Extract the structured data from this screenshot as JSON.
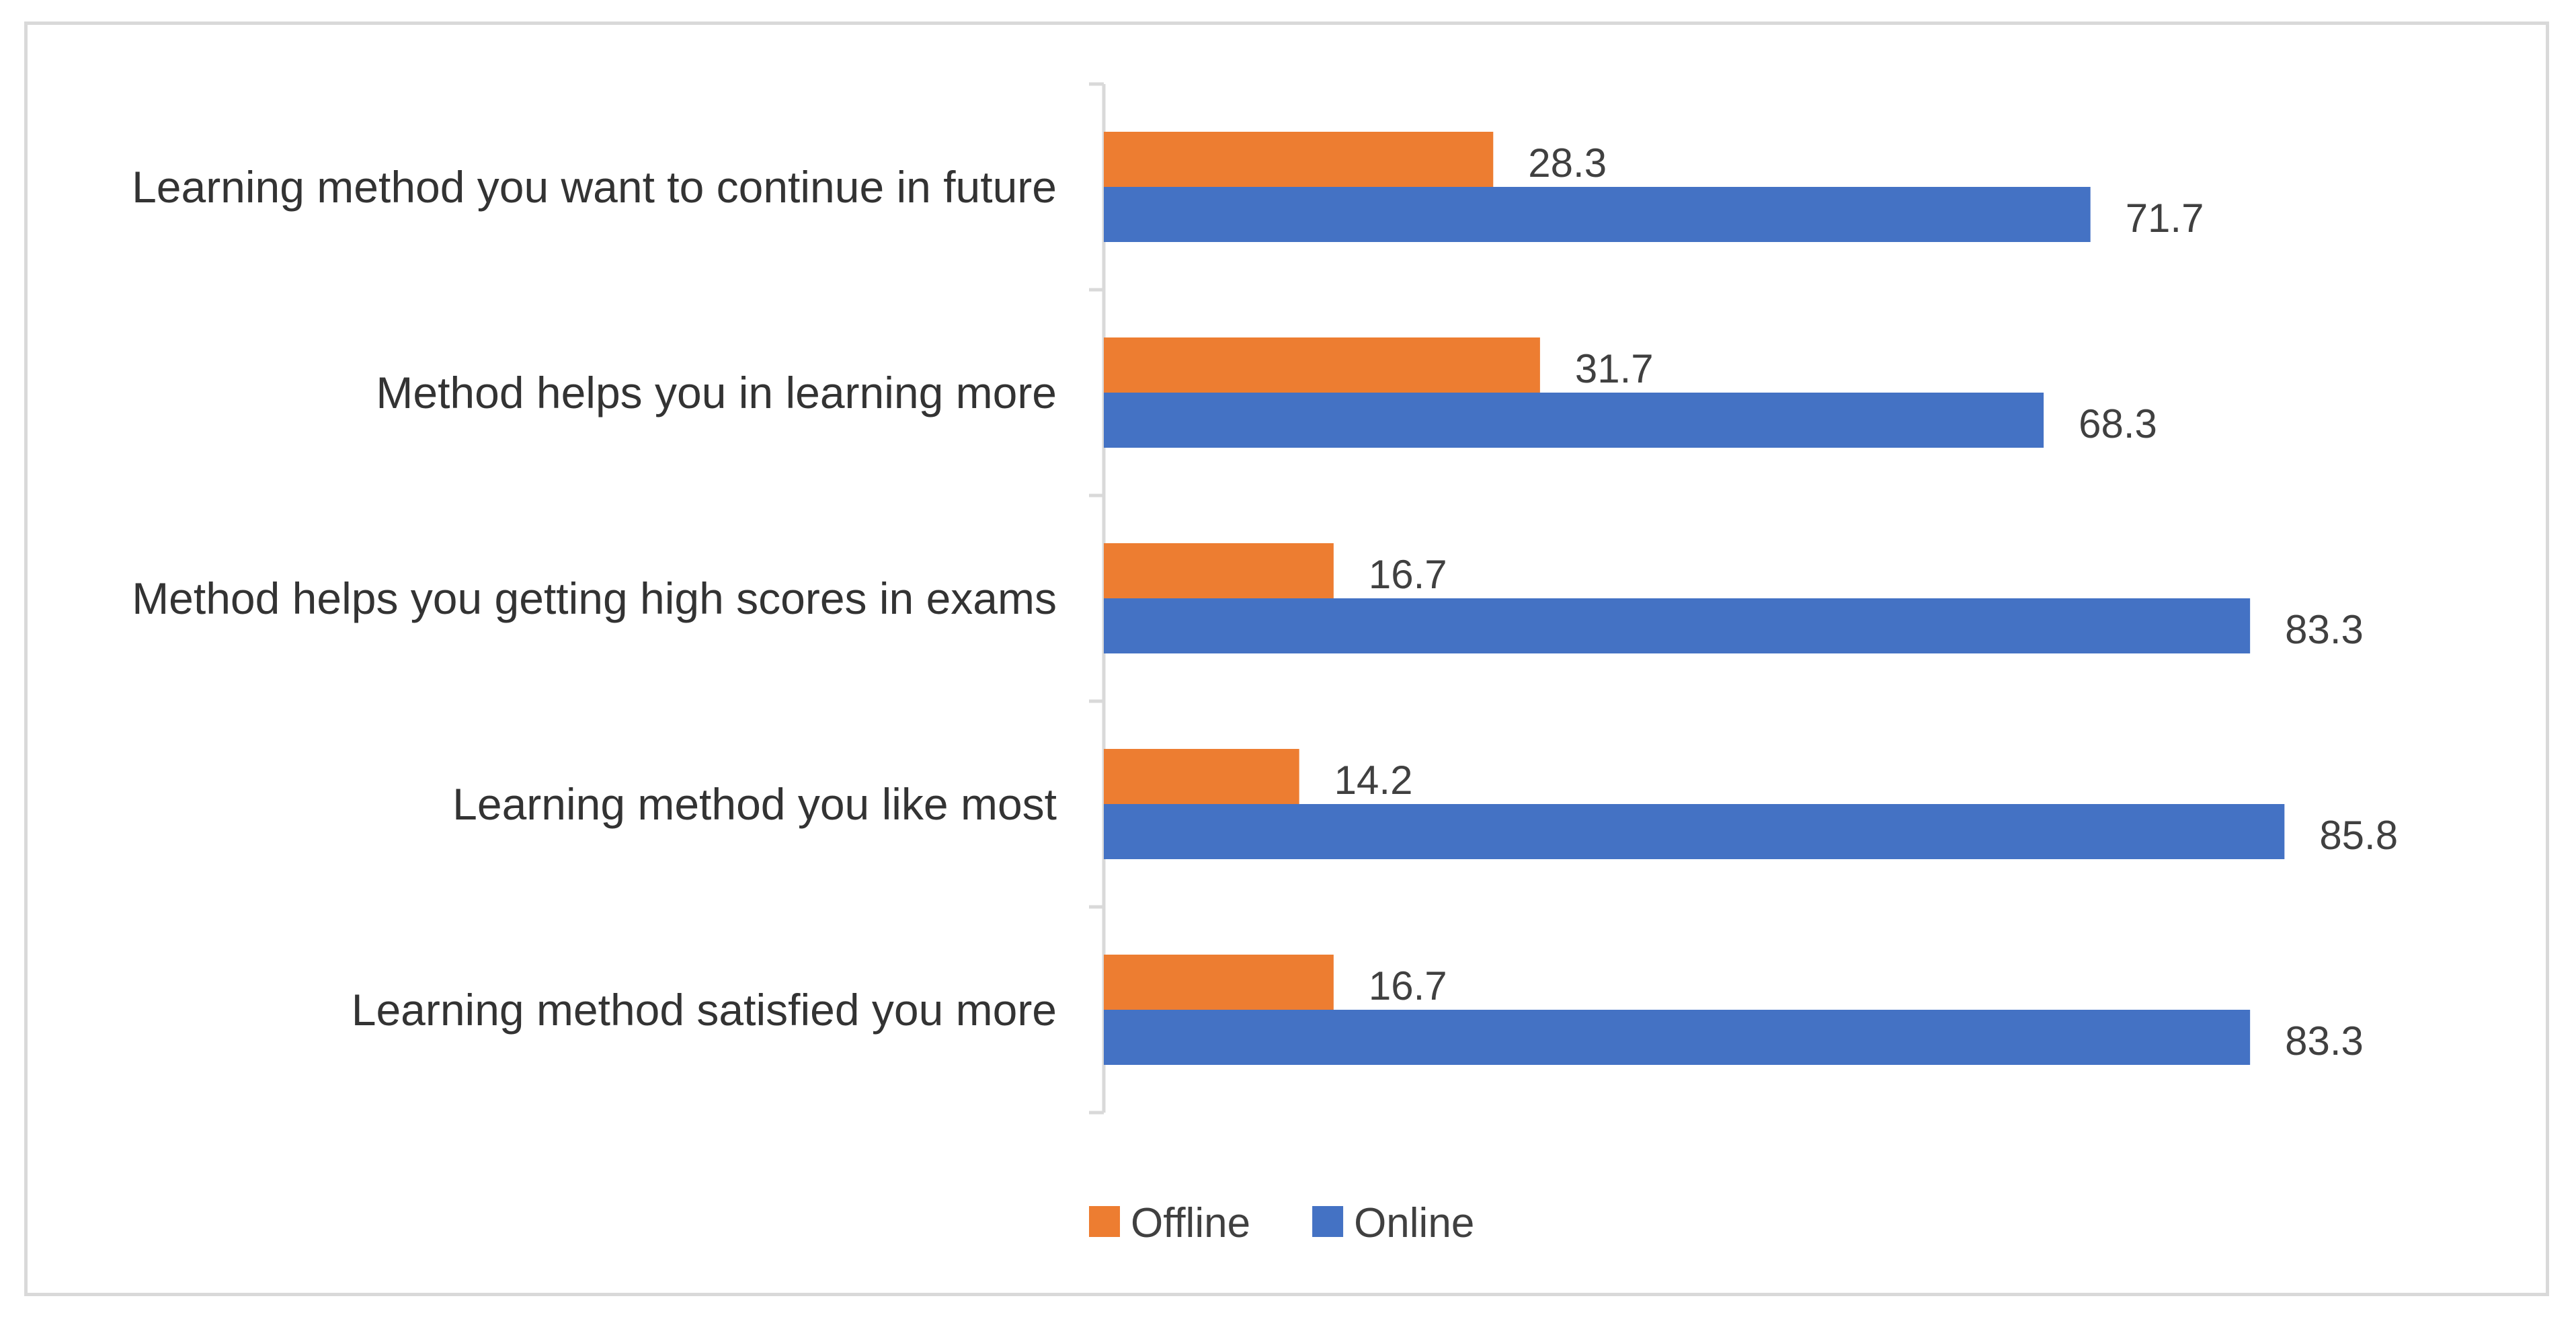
{
  "chart_data": {
    "type": "bar",
    "orientation": "horizontal",
    "title": "",
    "xlabel": "",
    "ylabel": "",
    "xlim": [
      0,
      100
    ],
    "grid": false,
    "legend_position": "bottom",
    "categories": [
      "Learning method you want to continue in future",
      "Method helps you in learning more",
      "Method helps you getting high scores in exams",
      "Learning method you like most",
      "Learning method satisfied you more"
    ],
    "series": [
      {
        "name": "Offline",
        "color": "#ED7D31",
        "values": [
          28.3,
          31.7,
          16.7,
          14.2,
          16.7
        ],
        "labels": [
          "28.3",
          "31.7",
          "16.7",
          "14.2",
          "16.7"
        ]
      },
      {
        "name": "Online",
        "color": "#4472C4",
        "values": [
          71.7,
          68.3,
          83.3,
          85.8,
          83.3
        ],
        "labels": [
          "71.7",
          "68.3",
          "83.3",
          "85.8",
          "83.3"
        ]
      }
    ]
  }
}
